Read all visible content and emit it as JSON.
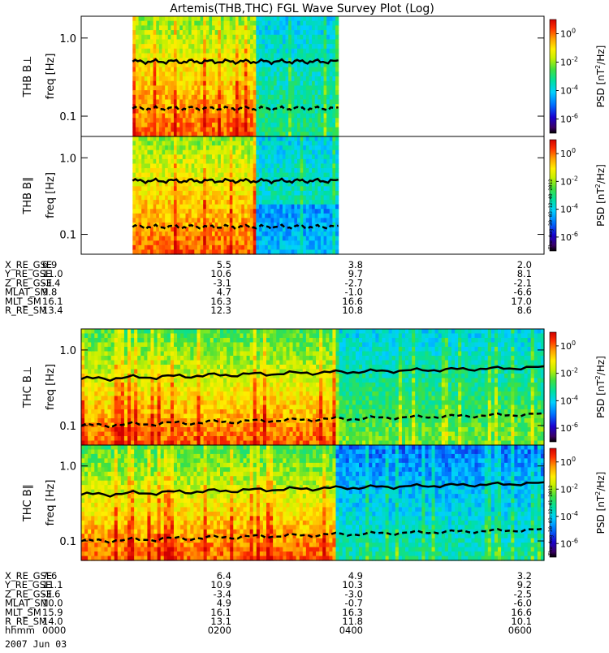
{
  "chart_data": {
    "type": "heatmap",
    "title": "Artemis(THB,THC) FGL Wave Survey Plot (Log)",
    "date_label": "2007 Jun 03",
    "colorbar": {
      "label_main": "PSD [nT",
      "label_sup": "2",
      "label_tail": "/Hz]",
      "ticks": [
        {
          "base": "10",
          "exp": "0",
          "value": 1
        },
        {
          "base": "10",
          "exp": "-2",
          "value": 0.01
        },
        {
          "base": "10",
          "exp": "-4",
          "value": 0.0001
        },
        {
          "base": "10",
          "exp": "-6",
          "value": 1e-06
        }
      ]
    },
    "freq_axis": {
      "label": "freq [Hz]",
      "scale": "log",
      "ticks": [
        {
          "label": "1.0",
          "value": 1.0
        },
        {
          "label": "0.1",
          "value": 0.1
        }
      ]
    },
    "panels": [
      {
        "name": "THB B⊥",
        "probe": "THB",
        "data_start_hhmm": "0040",
        "data_end_hhmm": "0320",
        "solid_line_hz": 0.5,
        "dashed_line_hz": 0.125,
        "stamp": ""
      },
      {
        "name": "THB B∥",
        "probe": "THB",
        "data_start_hhmm": "0040",
        "data_end_hhmm": "0320",
        "solid_line_hz": 0.5,
        "dashed_line_hz": 0.125,
        "stamp": "Thu Aug 30 03:12:40 2012"
      },
      {
        "name": "THC B⊥",
        "probe": "THC",
        "data_start_hhmm": "0000",
        "data_end_hhmm": "0600",
        "solid_line_hz": 0.5,
        "dashed_line_hz": 0.12,
        "stamp": ""
      },
      {
        "name": "THC B∥",
        "probe": "THC",
        "data_start_hhmm": "0000",
        "data_end_hhmm": "0600",
        "solid_line_hz": 0.5,
        "dashed_line_hz": 0.12,
        "stamp": "Thu Aug 30 03:12:41 2012"
      }
    ],
    "ephemeris": [
      {
        "probe": "THB",
        "rows": [
          {
            "label": "X_RE_GSE",
            "values": [
              "6.9",
              "5.5",
              "3.8",
              "2.0"
            ]
          },
          {
            "label": "Y_RE_GSE",
            "values": [
              "11.0",
              "10.6",
              "9.7",
              "8.1"
            ]
          },
          {
            "label": "Z_RE_GSE",
            "values": [
              "-3.4",
              "-3.1",
              "-2.7",
              "-2.1"
            ]
          },
          {
            "label": "MLAT_SM",
            "values": [
              "9.8",
              "4.7",
              "-1.0",
              "-6.6"
            ]
          },
          {
            "label": "MLT_SM",
            "values": [
              "16.1",
              "16.3",
              "16.6",
              "17.0"
            ]
          },
          {
            "label": "R_RE_SM",
            "values": [
              "13.4",
              "12.3",
              "10.8",
              "8.6"
            ]
          }
        ]
      },
      {
        "probe": "THC",
        "rows": [
          {
            "label": "X_RE_GSE",
            "values": [
              "7.6",
              "6.4",
              "4.9",
              "3.2"
            ]
          },
          {
            "label": "Y_RE_GSE",
            "values": [
              "11.1",
              "10.9",
              "10.3",
              "9.2"
            ]
          },
          {
            "label": "Z_RE_GSE",
            "values": [
              "-3.6",
              "-3.4",
              "-3.0",
              "-2.5"
            ]
          },
          {
            "label": "MLAT_SM",
            "values": [
              "10.0",
              "4.9",
              "-0.7",
              "-6.0"
            ]
          },
          {
            "label": "MLT_SM",
            "values": [
              "15.9",
              "16.1",
              "16.3",
              "16.6"
            ]
          },
          {
            "label": "R_RE_SM",
            "values": [
              "14.0",
              "13.1",
              "11.8",
              "10.1"
            ]
          },
          {
            "label": "hhmm",
            "values": [
              "0000",
              "0200",
              "0400",
              "0600"
            ]
          }
        ]
      }
    ]
  }
}
